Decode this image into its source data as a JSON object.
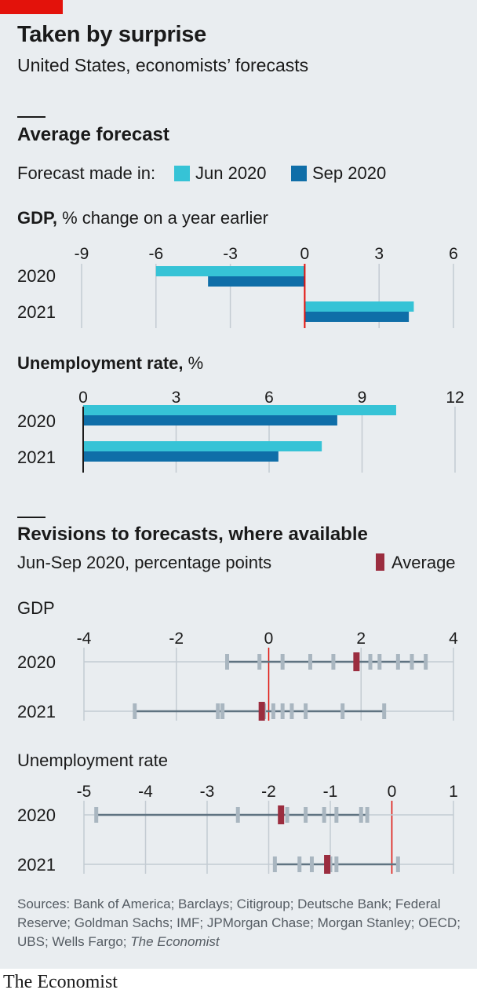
{
  "header": {
    "title": "Taken by surprise",
    "subtitle": "United States, economists’ forecasts"
  },
  "section1": {
    "title": "Average forecast",
    "legend_prefix": "Forecast made in:",
    "legend": [
      {
        "name": "Jun 2020",
        "color": "#36c3d6"
      },
      {
        "name": "Sep 2020",
        "color": "#0f6ea8"
      }
    ]
  },
  "section2": {
    "title": "Revisions to forecasts, where available",
    "subtitle": "Jun-Sep 2020, percentage points",
    "average_label": "Average",
    "average_color": "#9b2d3f"
  },
  "footer": {
    "sources_prefix": "Sources: Bank of America; Barclays; Citigroup; Deutsche Bank; Federal Reserve; Goldman Sachs; IMF; JPMorgan Chase; Morgan Stanley; OECD; UBS; Wells Fargo; ",
    "sources_italic": "The Economist",
    "brand": "The Economist"
  },
  "chart_data": [
    {
      "type": "bar",
      "title_bold": "GDP,",
      "title_rest": " % change on a year earlier",
      "categories": [
        "2020",
        "2021"
      ],
      "xlim": [
        -9,
        6
      ],
      "xticks": [
        -9,
        -6,
        -3,
        0,
        3,
        6
      ],
      "series": [
        {
          "name": "Jun 2020",
          "values": [
            -6.0,
            4.4
          ]
        },
        {
          "name": "Sep 2020",
          "values": [
            -3.9,
            4.2
          ]
        }
      ]
    },
    {
      "type": "bar",
      "title_bold": "Unemployment rate,",
      "title_rest": " %",
      "categories": [
        "2020",
        "2021"
      ],
      "xlim": [
        0,
        12
      ],
      "xticks": [
        0,
        3,
        6,
        9,
        12
      ],
      "series": [
        {
          "name": "Jun 2020",
          "values": [
            10.1,
            7.7
          ]
        },
        {
          "name": "Sep 2020",
          "values": [
            8.2,
            6.3
          ]
        }
      ]
    },
    {
      "type": "scatter",
      "title": "GDP",
      "categories": [
        "2020",
        "2021"
      ],
      "xlim": [
        -4,
        4
      ],
      "xticks": [
        -4,
        -2,
        0,
        2,
        4
      ],
      "rows": [
        {
          "category": "2020",
          "values": [
            -0.9,
            -0.2,
            0.3,
            0.9,
            1.4,
            1.9,
            2.2,
            2.4,
            2.8,
            3.1,
            3.4
          ],
          "average": 1.9
        },
        {
          "category": "2021",
          "values": [
            -2.9,
            -1.1,
            -1.0,
            -0.1,
            0.1,
            0.3,
            0.5,
            0.8,
            1.6,
            2.5
          ],
          "average": -0.15
        }
      ]
    },
    {
      "type": "scatter",
      "title": "Unemployment rate",
      "categories": [
        "2020",
        "2021"
      ],
      "xlim": [
        -5,
        1
      ],
      "xticks": [
        -5,
        -4,
        -3,
        -2,
        -1,
        0,
        1
      ],
      "rows": [
        {
          "category": "2020",
          "values": [
            -4.8,
            -2.5,
            -1.7,
            -1.4,
            -1.1,
            -0.9,
            -0.5,
            -0.4
          ],
          "average": -1.8
        },
        {
          "category": "2021",
          "values": [
            -1.9,
            -1.5,
            -1.3,
            -1.0,
            -0.9,
            0.1
          ],
          "average": -1.05
        }
      ]
    }
  ]
}
